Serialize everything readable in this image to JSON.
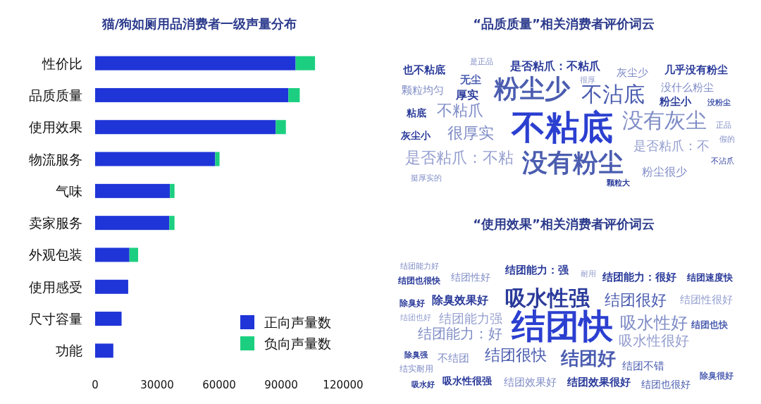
{
  "chart_data": [
    {
      "type": "bar",
      "orientation": "horizontal",
      "stacked": true,
      "title": "猫/狗如厕用品消费者一级声量分布",
      "categories": [
        "性价比",
        "品质质量",
        "使用效果",
        "物流服务",
        "气味",
        "卖家服务",
        "外观包装",
        "使用感受",
        "尺寸容量",
        "功能"
      ],
      "series": [
        {
          "name": "正向声量数",
          "color": "#1f35d8",
          "values": [
            97000,
            93500,
            87400,
            58100,
            36200,
            35900,
            16600,
            16000,
            12800,
            8800
          ]
        },
        {
          "name": "负向声量数",
          "color": "#1ccf80",
          "values": [
            9400,
            5500,
            4900,
            2100,
            2200,
            2500,
            4200,
            0,
            0,
            0
          ]
        }
      ],
      "xlim": [
        0,
        120000
      ],
      "xticks": [
        0,
        30000,
        60000,
        90000,
        120000
      ],
      "grid": false,
      "legend": "bottom right"
    },
    {
      "type": "other",
      "title": "“品质质量”相关消费者评价词云",
      "annotations": [
        "也不粘底",
        "是正品",
        "是否粘爪：不粘爪",
        "灰尘少",
        "几乎没有粉尘",
        "无尘",
        "粉尘少",
        "很厚",
        "颗粒均匀",
        "厚实",
        "不沾底",
        "没什么粉尘",
        "粉尘小",
        "没粉尘",
        "粘底",
        "不粘爪",
        "不粘底",
        "没有灰尘",
        "正品",
        "灰尘小",
        "很厚实",
        "假的",
        "是否粘爪：不",
        "是否粘爪：不粘",
        "没有粉尘",
        "不沾爪",
        "粉尘很少",
        "挺厚实的",
        "颗粒大"
      ]
    },
    {
      "type": "other",
      "title": "“使用效果”相关消费者评价词云",
      "annotations": [
        "结团能力好",
        "结团能力：强",
        "耐用",
        "结团也很快",
        "结团性好",
        "结团能力：很好",
        "结团速度快",
        "吸水性强",
        "除臭好",
        "除臭效果好",
        "结团很好",
        "结团性很好",
        "结团也好",
        "结团能力强",
        "结团快",
        "吸水性好",
        "结团也快",
        "结团能力：好",
        "吸水性很好",
        "除臭强",
        "不结团",
        "结团很快",
        "结团好",
        "结团不错",
        "结实耐用",
        "除臭很好",
        "吸水好",
        "吸水性很强",
        "结团效果好",
        "结团效果很好",
        "结团也很好"
      ]
    }
  ]
}
